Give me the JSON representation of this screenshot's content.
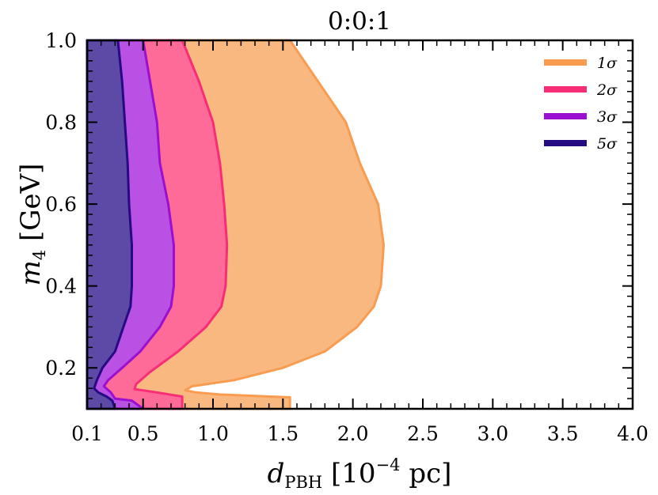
{
  "chart_data": {
    "type": "area",
    "title": "0:0:1",
    "xlabel": {
      "main": "d",
      "sub": "PBH",
      "rest1": " [10",
      "sup": "−4",
      "rest2": " pc]"
    },
    "ylabel": {
      "main": "m",
      "sub": "4",
      "rest": " [GeV]"
    },
    "xlim": [
      0.1,
      4.0
    ],
    "ylim": [
      0.1,
      1.0
    ],
    "xticks": [
      {
        "value": 0.1,
        "label": "0.1"
      },
      {
        "value": 0.5,
        "label": "0.5"
      },
      {
        "value": 1.0,
        "label": "1.0"
      },
      {
        "value": 1.5,
        "label": "1.5"
      },
      {
        "value": 2.0,
        "label": "2.0"
      },
      {
        "value": 2.5,
        "label": "2.5"
      },
      {
        "value": 3.0,
        "label": "3.0"
      },
      {
        "value": 3.5,
        "label": "3.5"
      },
      {
        "value": 4.0,
        "label": "4.0"
      }
    ],
    "yticks": [
      {
        "value": 0.2,
        "label": "0.2"
      },
      {
        "value": 0.4,
        "label": "0.4"
      },
      {
        "value": 0.6,
        "label": "0.6"
      },
      {
        "value": 0.8,
        "label": "0.8"
      },
      {
        "value": 1.0,
        "label": "1.0"
      }
    ],
    "legend_position": "top-right",
    "series": [
      {
        "name": "1σ",
        "key": "1sigma",
        "edge_color": "#f99c50",
        "fill_color": "#f9b880",
        "boundary": [
          [
            1.55,
            1.0
          ],
          [
            1.75,
            0.9
          ],
          [
            1.95,
            0.8
          ],
          [
            2.05,
            0.7
          ],
          [
            2.18,
            0.6
          ],
          [
            2.22,
            0.5
          ],
          [
            2.2,
            0.4
          ],
          [
            2.15,
            0.35
          ],
          [
            2.03,
            0.3
          ],
          [
            1.8,
            0.24
          ],
          [
            1.5,
            0.2
          ],
          [
            1.15,
            0.17
          ],
          [
            0.85,
            0.155
          ],
          [
            0.8,
            0.145
          ],
          [
            0.88,
            0.14
          ],
          [
            1.05,
            0.135
          ],
          [
            1.55,
            0.128
          ],
          [
            1.55,
            0.1
          ]
        ]
      },
      {
        "name": "2σ",
        "key": "2sigma",
        "edge_color": "#f72d78",
        "fill_color": "#fe6b98",
        "boundary": [
          [
            0.78,
            1.0
          ],
          [
            0.9,
            0.9
          ],
          [
            1.0,
            0.8
          ],
          [
            1.05,
            0.7
          ],
          [
            1.08,
            0.6
          ],
          [
            1.1,
            0.5
          ],
          [
            1.09,
            0.4
          ],
          [
            1.06,
            0.35
          ],
          [
            0.95,
            0.3
          ],
          [
            0.75,
            0.24
          ],
          [
            0.55,
            0.19
          ],
          [
            0.45,
            0.16
          ],
          [
            0.44,
            0.148
          ],
          [
            0.6,
            0.14
          ],
          [
            0.78,
            0.13
          ],
          [
            0.78,
            0.1
          ]
        ]
      },
      {
        "name": "3σ",
        "key": "3sigma",
        "edge_color": "#9a0fd0",
        "fill_color": "#b952e4",
        "boundary": [
          [
            0.5,
            1.0
          ],
          [
            0.55,
            0.9
          ],
          [
            0.6,
            0.8
          ],
          [
            0.62,
            0.7
          ],
          [
            0.68,
            0.6
          ],
          [
            0.72,
            0.5
          ],
          [
            0.72,
            0.4
          ],
          [
            0.7,
            0.35
          ],
          [
            0.62,
            0.3
          ],
          [
            0.48,
            0.24
          ],
          [
            0.35,
            0.2
          ],
          [
            0.25,
            0.17
          ],
          [
            0.22,
            0.155
          ],
          [
            0.27,
            0.14
          ],
          [
            0.3,
            0.125
          ],
          [
            0.42,
            0.12
          ],
          [
            0.5,
            0.1
          ]
        ]
      },
      {
        "name": "5σ",
        "key": "5sigma",
        "edge_color": "#250a82",
        "fill_color": "#5d4aa6",
        "boundary": [
          [
            0.32,
            1.0
          ],
          [
            0.35,
            0.9
          ],
          [
            0.37,
            0.8
          ],
          [
            0.39,
            0.7
          ],
          [
            0.4,
            0.6
          ],
          [
            0.42,
            0.5
          ],
          [
            0.42,
            0.4
          ],
          [
            0.41,
            0.35
          ],
          [
            0.36,
            0.3
          ],
          [
            0.3,
            0.24
          ],
          [
            0.21,
            0.2
          ],
          [
            0.17,
            0.17
          ],
          [
            0.15,
            0.15
          ],
          [
            0.18,
            0.14
          ],
          [
            0.24,
            0.13
          ],
          [
            0.28,
            0.12
          ],
          [
            0.3,
            0.1
          ]
        ]
      }
    ]
  }
}
